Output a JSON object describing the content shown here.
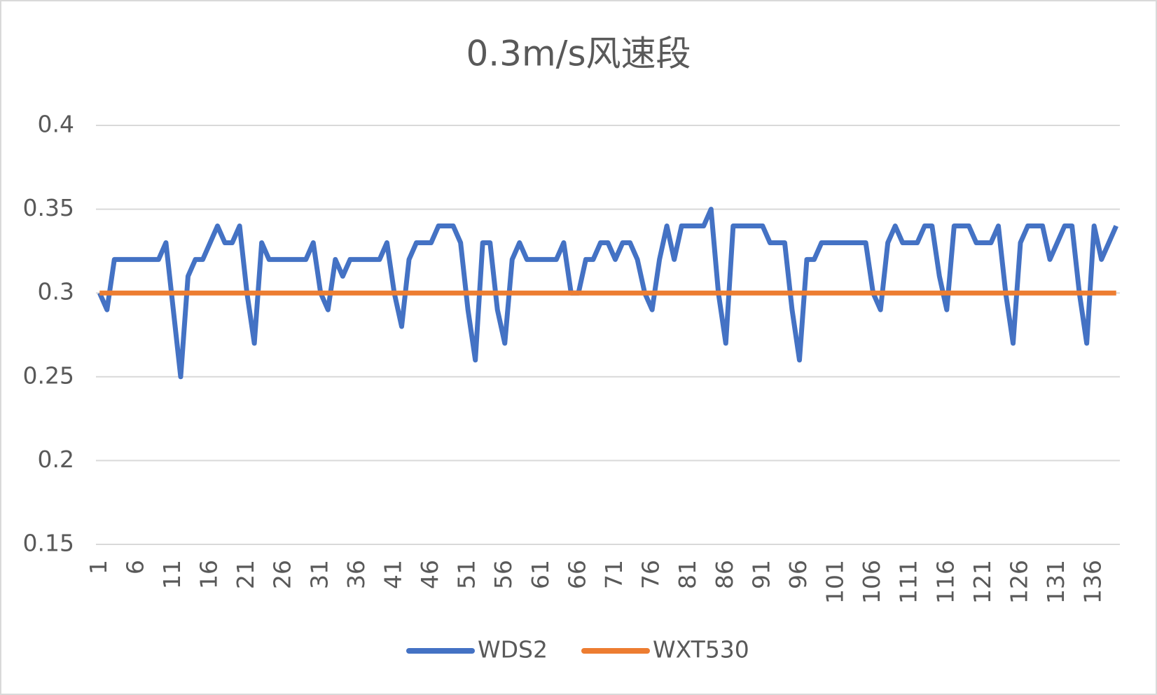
{
  "chart_data": {
    "type": "line",
    "title": "0.3m/s风速段",
    "categories": [
      1,
      null,
      null,
      null,
      null,
      6,
      null,
      null,
      null,
      null,
      11,
      null,
      null,
      null,
      null,
      16,
      null,
      null,
      null,
      null,
      21,
      null,
      null,
      null,
      null,
      26,
      null,
      null,
      null,
      null,
      31,
      null,
      null,
      null,
      null,
      36,
      null,
      null,
      null,
      null,
      41,
      null,
      null,
      null,
      null,
      46,
      null,
      null,
      null,
      null,
      51,
      null,
      null,
      null,
      null,
      56,
      null,
      null,
      null,
      null,
      61,
      null,
      null,
      null,
      null,
      66,
      null,
      null,
      null,
      null,
      71,
      null,
      null,
      null,
      null,
      76,
      null,
      null,
      null,
      null,
      81,
      null,
      null,
      null,
      null,
      86,
      null,
      null,
      null,
      null,
      91,
      null,
      null,
      null,
      null,
      96,
      null,
      null,
      null,
      null,
      101,
      null,
      null,
      null,
      null,
      106,
      null,
      null,
      null,
      null,
      111,
      null,
      null,
      null,
      null,
      116,
      null,
      null,
      null,
      null,
      121,
      null,
      null,
      null,
      null,
      126,
      null,
      null,
      null,
      null,
      131,
      null,
      null,
      null,
      null,
      136,
      null,
      null,
      null
    ],
    "series": [
      {
        "name": "WDS2",
        "color": "#4472c4",
        "values": [
          0.3,
          0.29,
          0.32,
          0.32,
          0.32,
          0.32,
          0.32,
          0.32,
          0.32,
          0.33,
          0.29,
          0.25,
          0.31,
          0.32,
          0.32,
          0.33,
          0.34,
          0.33,
          0.33,
          0.34,
          0.3,
          0.27,
          0.33,
          0.32,
          0.32,
          0.32,
          0.32,
          0.32,
          0.32,
          0.33,
          0.3,
          0.29,
          0.32,
          0.31,
          0.32,
          0.32,
          0.32,
          0.32,
          0.32,
          0.33,
          0.3,
          0.28,
          0.32,
          0.33,
          0.33,
          0.33,
          0.34,
          0.34,
          0.34,
          0.33,
          0.29,
          0.26,
          0.33,
          0.33,
          0.29,
          0.27,
          0.32,
          0.33,
          0.32,
          0.32,
          0.32,
          0.32,
          0.32,
          0.33,
          0.3,
          0.3,
          0.32,
          0.32,
          0.33,
          0.33,
          0.32,
          0.33,
          0.33,
          0.32,
          0.3,
          0.29,
          0.32,
          0.34,
          0.32,
          0.34,
          0.34,
          0.34,
          0.34,
          0.35,
          0.3,
          0.27,
          0.34,
          0.34,
          0.34,
          0.34,
          0.34,
          0.33,
          0.33,
          0.33,
          0.29,
          0.26,
          0.32,
          0.32,
          0.33,
          0.33,
          0.33,
          0.33,
          0.33,
          0.33,
          0.33,
          0.3,
          0.29,
          0.33,
          0.34,
          0.33,
          0.33,
          0.33,
          0.34,
          0.34,
          0.31,
          0.29,
          0.34,
          0.34,
          0.34,
          0.33,
          0.33,
          0.33,
          0.34,
          0.3,
          0.27,
          0.33,
          0.34,
          0.34,
          0.34,
          0.32,
          0.33,
          0.34,
          0.34,
          0.3,
          0.27,
          0.34,
          0.32,
          0.33,
          0.34
        ]
      },
      {
        "name": "WXT530",
        "color": "#ed7d31",
        "values": [
          0.3,
          0.3,
          0.3,
          0.3,
          0.3,
          0.3,
          0.3,
          0.3,
          0.3,
          0.3,
          0.3,
          0.3,
          0.3,
          0.3,
          0.3,
          0.3,
          0.3,
          0.3,
          0.3,
          0.3,
          0.3,
          0.3,
          0.3,
          0.3,
          0.3,
          0.3,
          0.3,
          0.3,
          0.3,
          0.3,
          0.3,
          0.3,
          0.3,
          0.3,
          0.3,
          0.3,
          0.3,
          0.3,
          0.3,
          0.3,
          0.3,
          0.3,
          0.3,
          0.3,
          0.3,
          0.3,
          0.3,
          0.3,
          0.3,
          0.3,
          0.3,
          0.3,
          0.3,
          0.3,
          0.3,
          0.3,
          0.3,
          0.3,
          0.3,
          0.3,
          0.3,
          0.3,
          0.3,
          0.3,
          0.3,
          0.3,
          0.3,
          0.3,
          0.3,
          0.3,
          0.3,
          0.3,
          0.3,
          0.3,
          0.3,
          0.3,
          0.3,
          0.3,
          0.3,
          0.3,
          0.3,
          0.3,
          0.3,
          0.3,
          0.3,
          0.3,
          0.3,
          0.3,
          0.3,
          0.3,
          0.3,
          0.3,
          0.3,
          0.3,
          0.3,
          0.3,
          0.3,
          0.3,
          0.3,
          0.3,
          0.3,
          0.3,
          0.3,
          0.3,
          0.3,
          0.3,
          0.3,
          0.3,
          0.3,
          0.3,
          0.3,
          0.3,
          0.3,
          0.3,
          0.3,
          0.3,
          0.3,
          0.3,
          0.3,
          0.3,
          0.3,
          0.3,
          0.3,
          0.3,
          0.3,
          0.3,
          0.3,
          0.3,
          0.3,
          0.3,
          0.3,
          0.3,
          0.3,
          0.3,
          0.3,
          0.3,
          0.3,
          0.3,
          0.3
        ]
      }
    ],
    "ylim": [
      0.15,
      0.4
    ],
    "yticks": [
      0.15,
      0.2,
      0.25,
      0.3,
      0.35,
      0.4
    ],
    "grid": true,
    "legend": "bottom"
  }
}
